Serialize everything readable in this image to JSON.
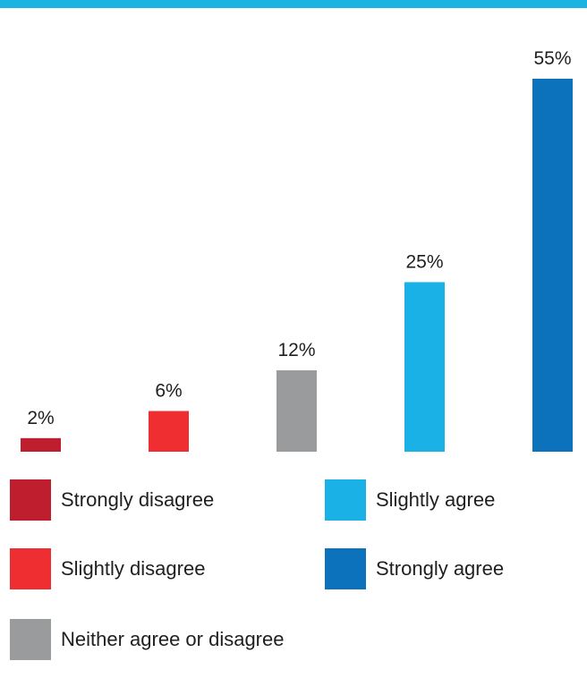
{
  "theme": {
    "top_band_color": "#1ab4e2"
  },
  "chart_data": {
    "type": "bar",
    "categories": [
      "Strongly disagree",
      "Slightly disagree",
      "Neither agree or disagree",
      "Slightly agree",
      "Strongly agree"
    ],
    "values": [
      2,
      6,
      12,
      25,
      55
    ],
    "value_labels": [
      "2%",
      "6%",
      "12%",
      "25%",
      "55%"
    ],
    "colors": [
      "#be1e2d",
      "#ee2e31",
      "#999b9c",
      "#1ab2e6",
      "#0b72bb"
    ],
    "unit": "%",
    "ylim": [
      0,
      55
    ],
    "grid": false,
    "legend": "bottom"
  }
}
